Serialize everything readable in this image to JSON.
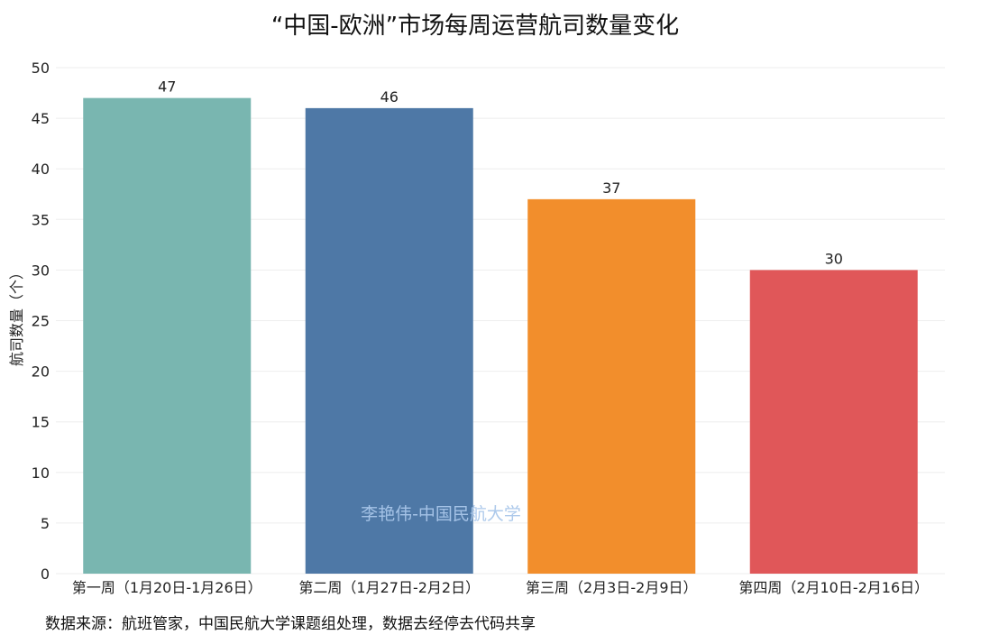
{
  "page": {
    "source_note": "数据来源：航班管家，中国民航大学课题组处理，数据去经停去代码共享",
    "watermark": "李艳伟-中国民航大学"
  },
  "chart_data": {
    "type": "bar",
    "title": "“中国-欧洲”市场每周运营航司数量变化",
    "xlabel": "",
    "ylabel": "航司数量（个）",
    "categories": [
      "第一周（1月20日-1月26日）",
      "第二周（1月27日-2月2日）",
      "第三周（2月3日-2月9日）",
      "第四周（2月10日-2月16日）"
    ],
    "values": [
      47,
      46,
      37,
      30
    ],
    "colors": [
      "#79b6b0",
      "#4e78a6",
      "#f28e2c",
      "#e05759"
    ],
    "ylim": [
      0,
      50
    ],
    "yticks": [
      0,
      5,
      10,
      15,
      20,
      25,
      30,
      35,
      40,
      45,
      50
    ],
    "grid": true
  }
}
